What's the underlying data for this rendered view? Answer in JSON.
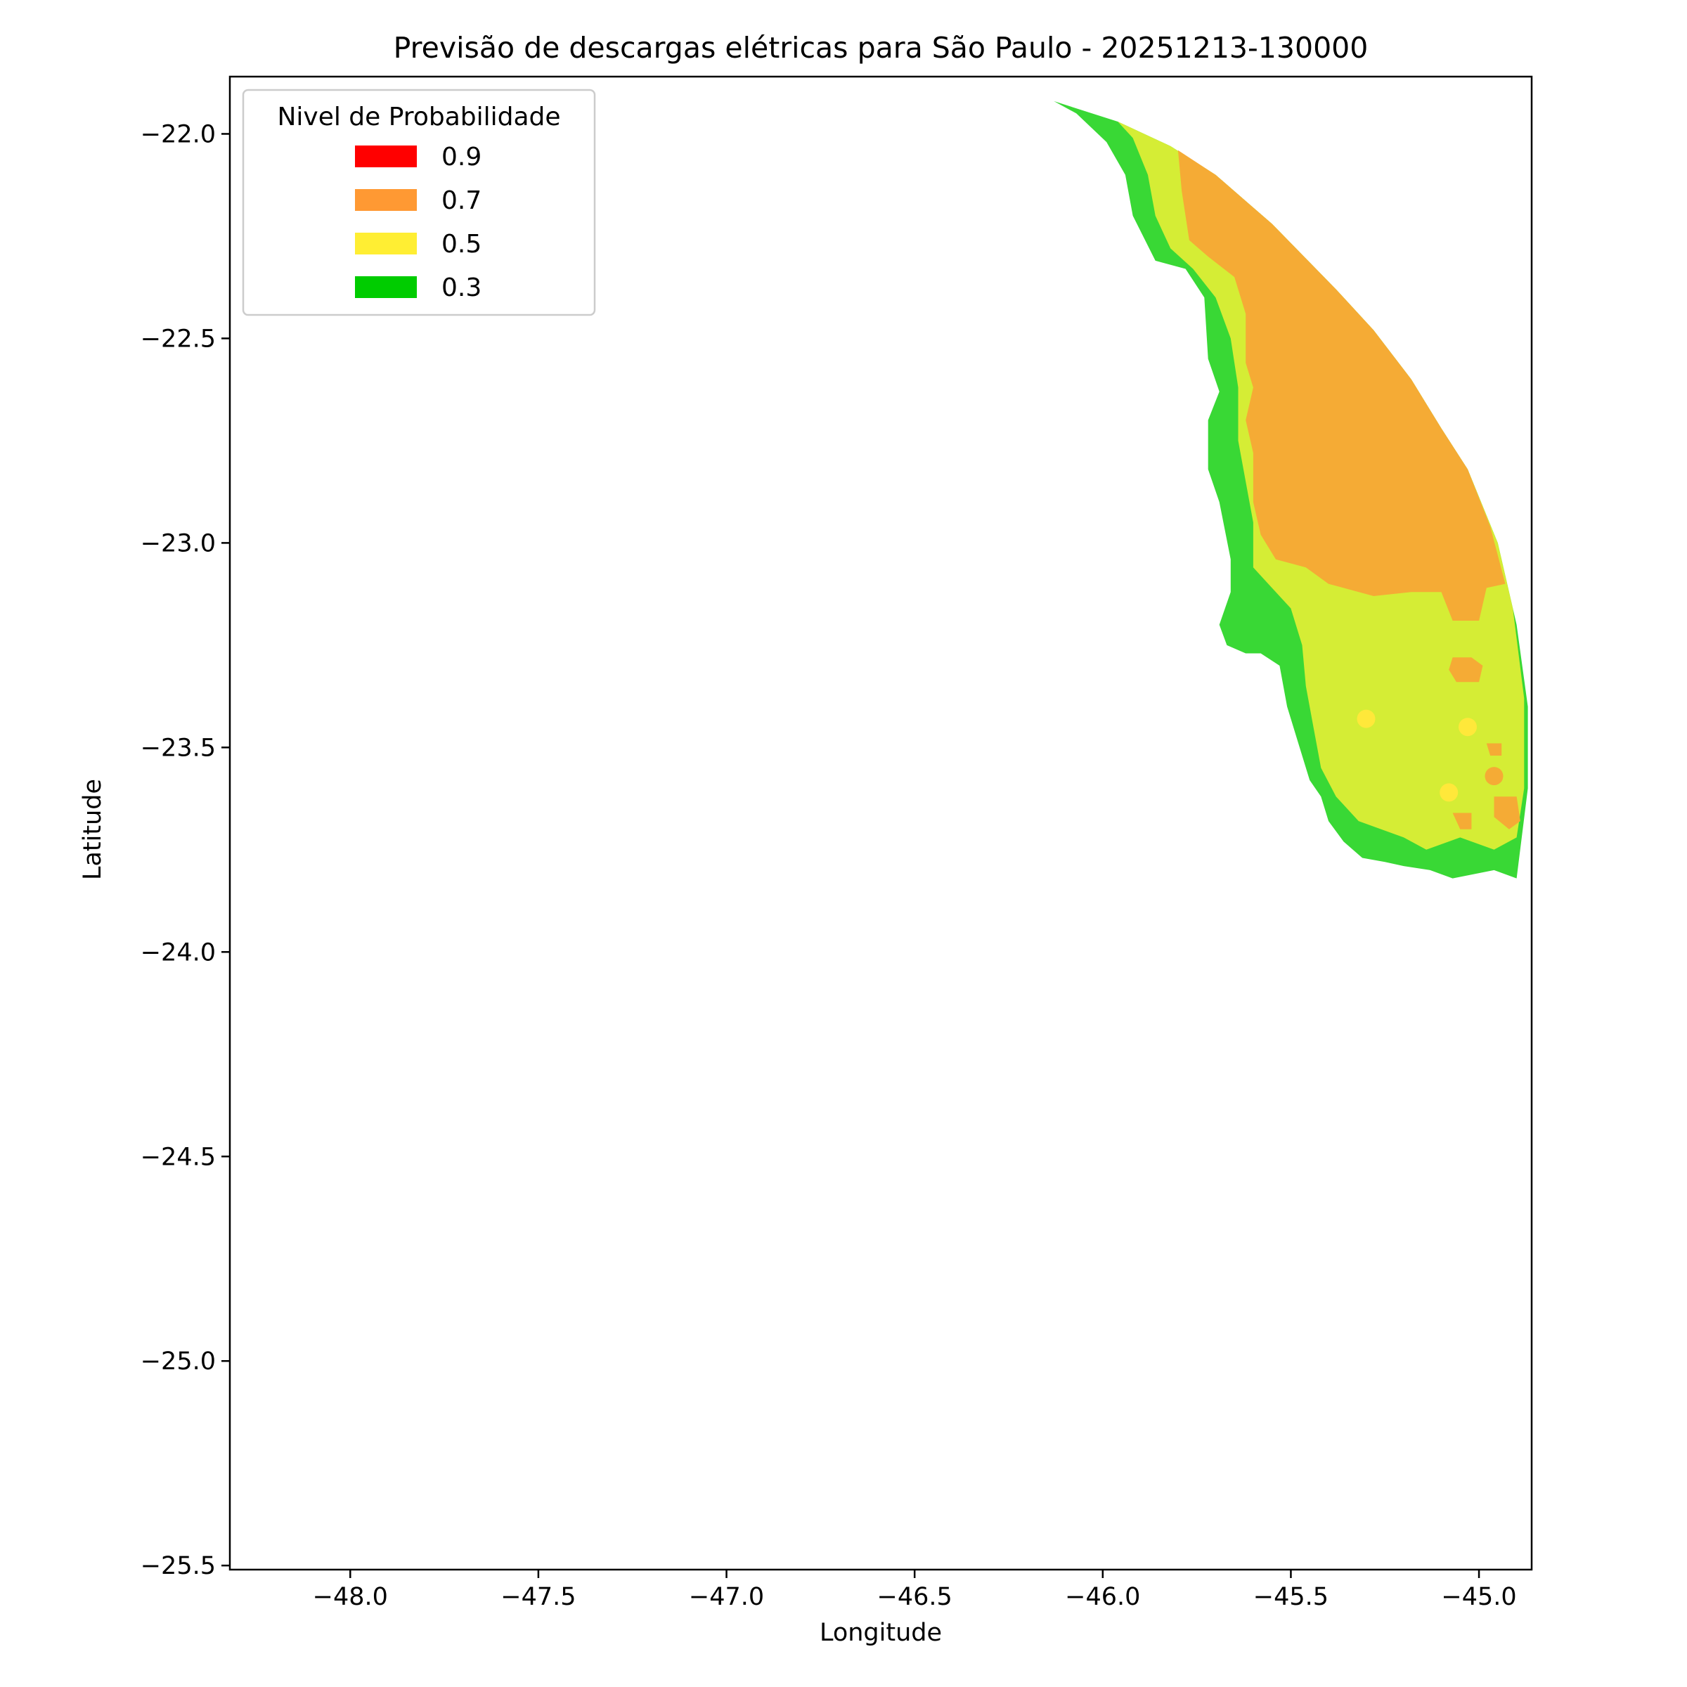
{
  "chart_data": {
    "type": "filled-contour",
    "title": "Previsão de descargas elétricas para São Paulo - 20251213-130000",
    "xlabel": "Longitude",
    "ylabel": "Latitude",
    "xlim": [
      -48.32,
      -44.86
    ],
    "ylim": [
      -25.51,
      -21.86
    ],
    "xticks": [
      -48.0,
      -47.5,
      -47.0,
      -46.5,
      -46.0,
      -45.5,
      -45.0
    ],
    "xtick_labels": [
      "−48.0",
      "−47.5",
      "−47.0",
      "−46.5",
      "−46.0",
      "−45.5",
      "−45.0"
    ],
    "yticks": [
      -22.0,
      -22.5,
      -23.0,
      -23.5,
      -24.0,
      -24.5,
      -25.0,
      -25.5
    ],
    "ytick_labels": [
      "−22.0",
      "−22.5",
      "−23.0",
      "−23.5",
      "−24.0",
      "−24.5",
      "−25.0",
      "−25.5"
    ],
    "grid": false,
    "legend": {
      "title": "Nivel de Probabilidade",
      "placement": "upper-left",
      "entries": [
        {
          "label": "0.9",
          "color": "#ff0000"
        },
        {
          "label": "0.7",
          "color": "#ff9933"
        },
        {
          "label": "0.5",
          "color": "#ffee33"
        },
        {
          "label": "0.3",
          "color": "#00cc00"
        }
      ]
    },
    "series": [
      {
        "level": 0.3,
        "color": "#39d835",
        "polygons": [
          [
            [
              -46.13,
              -21.92
            ],
            [
              -45.96,
              -21.97
            ],
            [
              -45.82,
              -22.03
            ],
            [
              -45.7,
              -22.1
            ],
            [
              -45.55,
              -22.22
            ],
            [
              -45.38,
              -22.38
            ],
            [
              -45.28,
              -22.48
            ],
            [
              -45.18,
              -22.6
            ],
            [
              -45.1,
              -22.72
            ],
            [
              -45.03,
              -22.82
            ],
            [
              -44.95,
              -23.0
            ],
            [
              -44.9,
              -23.2
            ],
            [
              -44.87,
              -23.4
            ],
            [
              -44.87,
              -23.6
            ],
            [
              -44.9,
              -23.82
            ],
            [
              -44.96,
              -23.8
            ],
            [
              -45.07,
              -23.82
            ],
            [
              -45.13,
              -23.8
            ],
            [
              -45.2,
              -23.79
            ],
            [
              -45.25,
              -23.78
            ],
            [
              -45.31,
              -23.77
            ],
            [
              -45.36,
              -23.73
            ],
            [
              -45.4,
              -23.68
            ],
            [
              -45.42,
              -23.62
            ],
            [
              -45.45,
              -23.58
            ],
            [
              -45.48,
              -23.49
            ],
            [
              -45.51,
              -23.4
            ],
            [
              -45.53,
              -23.3
            ],
            [
              -45.58,
              -23.27
            ],
            [
              -45.62,
              -23.27
            ],
            [
              -45.67,
              -23.25
            ],
            [
              -45.69,
              -23.2
            ],
            [
              -45.66,
              -23.12
            ],
            [
              -45.66,
              -23.04
            ],
            [
              -45.69,
              -22.9
            ],
            [
              -45.72,
              -22.82
            ],
            [
              -45.72,
              -22.7
            ],
            [
              -45.69,
              -22.63
            ],
            [
              -45.72,
              -22.55
            ],
            [
              -45.73,
              -22.4
            ],
            [
              -45.78,
              -22.33
            ],
            [
              -45.86,
              -22.31
            ],
            [
              -45.92,
              -22.2
            ],
            [
              -45.94,
              -22.1
            ],
            [
              -45.99,
              -22.02
            ],
            [
              -46.07,
              -21.95
            ]
          ]
        ]
      },
      {
        "level": 0.5,
        "color": "#d5ed35",
        "polygons": [
          [
            [
              -45.96,
              -21.97
            ],
            [
              -45.82,
              -22.03
            ],
            [
              -45.7,
              -22.1
            ],
            [
              -45.55,
              -22.22
            ],
            [
              -45.38,
              -22.38
            ],
            [
              -45.28,
              -22.48
            ],
            [
              -45.18,
              -22.6
            ],
            [
              -45.1,
              -22.72
            ],
            [
              -45.03,
              -22.82
            ],
            [
              -44.95,
              -23.0
            ],
            [
              -44.91,
              -23.16
            ],
            [
              -44.88,
              -23.38
            ],
            [
              -44.88,
              -23.6
            ],
            [
              -44.9,
              -23.72
            ],
            [
              -44.96,
              -23.75
            ],
            [
              -45.05,
              -23.72
            ],
            [
              -45.14,
              -23.75
            ],
            [
              -45.2,
              -23.72
            ],
            [
              -45.26,
              -23.7
            ],
            [
              -45.32,
              -23.68
            ],
            [
              -45.38,
              -23.62
            ],
            [
              -45.42,
              -23.55
            ],
            [
              -45.44,
              -23.45
            ],
            [
              -45.46,
              -23.35
            ],
            [
              -45.47,
              -23.25
            ],
            [
              -45.5,
              -23.16
            ],
            [
              -45.56,
              -23.1
            ],
            [
              -45.6,
              -23.06
            ],
            [
              -45.6,
              -22.95
            ],
            [
              -45.62,
              -22.85
            ],
            [
              -45.64,
              -22.75
            ],
            [
              -45.64,
              -22.62
            ],
            [
              -45.66,
              -22.5
            ],
            [
              -45.7,
              -22.4
            ],
            [
              -45.76,
              -22.33
            ],
            [
              -45.82,
              -22.28
            ],
            [
              -45.86,
              -22.2
            ],
            [
              -45.88,
              -22.1
            ],
            [
              -45.92,
              -22.01
            ]
          ]
        ]
      },
      {
        "level": 0.7,
        "color": "#f5ab35",
        "polygons": [
          [
            [
              -45.8,
              -22.04
            ],
            [
              -45.7,
              -22.1
            ],
            [
              -45.55,
              -22.22
            ],
            [
              -45.38,
              -22.38
            ],
            [
              -45.28,
              -22.48
            ],
            [
              -45.18,
              -22.6
            ],
            [
              -45.1,
              -22.72
            ],
            [
              -45.03,
              -22.82
            ],
            [
              -44.97,
              -22.96
            ],
            [
              -44.93,
              -23.1
            ],
            [
              -44.98,
              -23.11
            ],
            [
              -45.0,
              -23.19
            ],
            [
              -45.07,
              -23.19
            ],
            [
              -45.1,
              -23.12
            ],
            [
              -45.18,
              -23.12
            ],
            [
              -45.28,
              -23.13
            ],
            [
              -45.4,
              -23.1
            ],
            [
              -45.46,
              -23.06
            ],
            [
              -45.54,
              -23.04
            ],
            [
              -45.58,
              -22.98
            ],
            [
              -45.6,
              -22.9
            ],
            [
              -45.6,
              -22.78
            ],
            [
              -45.62,
              -22.7
            ],
            [
              -45.6,
              -22.62
            ],
            [
              -45.62,
              -22.56
            ],
            [
              -45.62,
              -22.44
            ],
            [
              -45.65,
              -22.35
            ],
            [
              -45.72,
              -22.3
            ],
            [
              -45.77,
              -22.26
            ],
            [
              -45.79,
              -22.14
            ]
          ],
          [
            [
              -45.07,
              -23.28
            ],
            [
              -45.02,
              -23.28
            ],
            [
              -44.99,
              -23.3
            ],
            [
              -45.0,
              -23.34
            ],
            [
              -45.06,
              -23.34
            ],
            [
              -45.08,
              -23.31
            ]
          ],
          [
            [
              -44.96,
              -23.62
            ],
            [
              -44.9,
              -23.62
            ],
            [
              -44.89,
              -23.68
            ],
            [
              -44.92,
              -23.7
            ],
            [
              -44.96,
              -23.67
            ]
          ],
          [
            [
              -45.07,
              -23.66
            ],
            [
              -45.02,
              -23.66
            ],
            [
              -45.02,
              -23.7
            ],
            [
              -45.05,
              -23.7
            ]
          ],
          [
            [
              -44.98,
              -23.49
            ],
            [
              -44.94,
              -23.49
            ],
            [
              -44.94,
              -23.52
            ],
            [
              -44.97,
              -23.52
            ]
          ]
        ]
      }
    ],
    "points": [
      {
        "x": -45.3,
        "y": -23.43,
        "level": 0.5,
        "color": "#ffe83a"
      },
      {
        "x": -45.03,
        "y": -23.45,
        "level": 0.5,
        "color": "#ffe83a"
      },
      {
        "x": -45.08,
        "y": -23.61,
        "level": 0.5,
        "color": "#ffe83a"
      },
      {
        "x": -44.96,
        "y": -23.57,
        "level": 0.7,
        "color": "#f5ab35"
      }
    ]
  }
}
